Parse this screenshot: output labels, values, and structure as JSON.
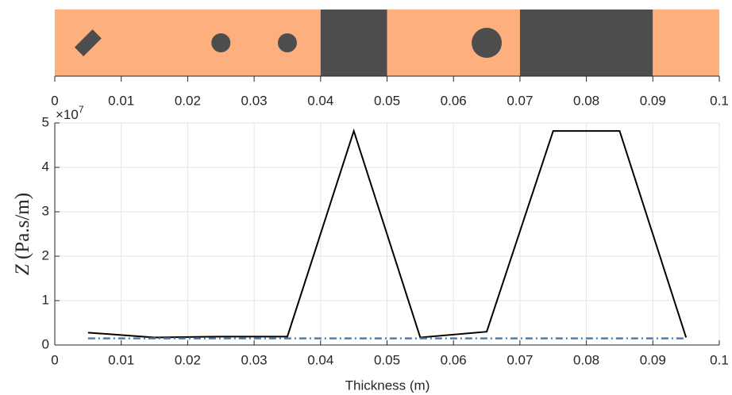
{
  "chart_data": [
    {
      "type": "layers",
      "xlim": [
        0,
        0.1
      ],
      "xticks": [
        0,
        0.01,
        0.02,
        0.03,
        0.04,
        0.05,
        0.06,
        0.07,
        0.08,
        0.09,
        0.1
      ],
      "layers": [
        {
          "start": 0,
          "end": 0.04,
          "color": "#fdb07e"
        },
        {
          "start": 0.04,
          "end": 0.05,
          "color": "#4d4d4d"
        },
        {
          "start": 0.05,
          "end": 0.07,
          "color": "#fdb07e"
        },
        {
          "start": 0.07,
          "end": 0.09,
          "color": "#4d4d4d"
        },
        {
          "start": 0.09,
          "end": 0.1,
          "color": "#fdb07e"
        }
      ],
      "inclusions": [
        {
          "shape": "diamond",
          "x": 0.005,
          "color": "#4d4d4d"
        },
        {
          "shape": "circle",
          "x": 0.025,
          "color": "#4d4d4d"
        },
        {
          "shape": "circle",
          "x": 0.035,
          "color": "#4d4d4d"
        },
        {
          "shape": "large-circle",
          "x": 0.065,
          "color": "#4d4d4d"
        }
      ]
    },
    {
      "type": "line",
      "xlabel": "Thickness (m)",
      "ylabel_symbol": "Z",
      "ylabel_unit": "(Pa.s/m)",
      "y_multiplier": "×10",
      "y_multiplier_exp": "7",
      "x": [
        0.005,
        0.015,
        0.025,
        0.035,
        0.045,
        0.055,
        0.065,
        0.075,
        0.085,
        0.095
      ],
      "series": [
        {
          "color": "#000000",
          "dash": "solid",
          "values": [
            0.28,
            0.17,
            0.19,
            0.19,
            4.82,
            0.17,
            0.3,
            4.82,
            4.82,
            0.17
          ]
        },
        {
          "color": "#4a7fb0",
          "dash": "dashdot",
          "values": [
            0.15,
            0.15,
            0.15,
            0.15,
            0.15,
            0.15,
            0.15,
            0.15,
            0.15,
            0.15
          ]
        }
      ],
      "xlim": [
        0,
        0.1
      ],
      "xticks": [
        0,
        0.01,
        0.02,
        0.03,
        0.04,
        0.05,
        0.06,
        0.07,
        0.08,
        0.09,
        0.1
      ],
      "ylim": [
        0,
        5
      ],
      "yticks": [
        0,
        1,
        2,
        3,
        4,
        5
      ],
      "grid": true
    }
  ]
}
